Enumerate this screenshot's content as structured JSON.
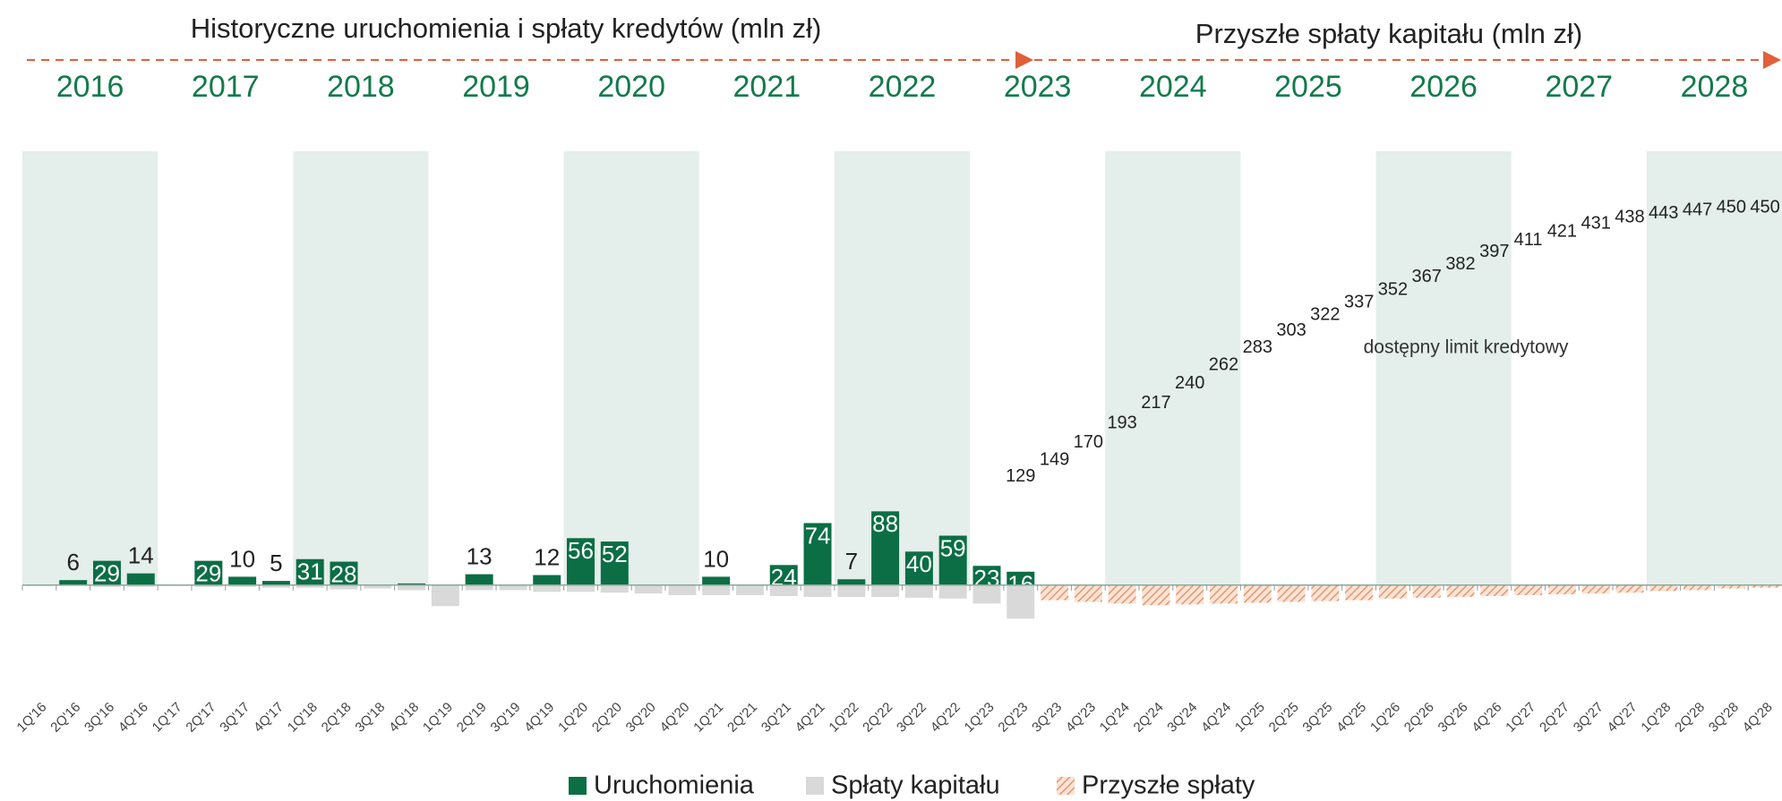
{
  "chart_data": {
    "type": "bar",
    "title": "Historyczne uruchomienia i spłaty kredytów (mln zł)",
    "subtitle": "Przyszłe spłaty kapitału (mln zł)",
    "years": [
      "2016",
      "2017",
      "2018",
      "2019",
      "2020",
      "2021",
      "2022",
      "2023",
      "2024",
      "2025",
      "2026",
      "2027",
      "2028"
    ],
    "categories": [
      "1Q'16",
      "2Q'16",
      "3Q'16",
      "4Q'16",
      "1Q'17",
      "2Q'17",
      "3Q'17",
      "4Q'17",
      "1Q'18",
      "2Q'18",
      "3Q'18",
      "4Q'18",
      "1Q'19",
      "2Q'19",
      "3Q'19",
      "4Q'19",
      "1Q'20",
      "2Q'20",
      "3Q'20",
      "4Q'20",
      "1Q'21",
      "2Q'21",
      "3Q'21",
      "4Q'21",
      "1Q'22",
      "2Q'22",
      "3Q'22",
      "4Q'22",
      "1Q'23",
      "2Q'23",
      "3Q'23",
      "4Q'23",
      "1Q'24",
      "2Q'24",
      "3Q'24",
      "4Q'24",
      "1Q'25",
      "2Q'25",
      "3Q'25",
      "4Q'25",
      "1Q'26",
      "2Q'26",
      "3Q'26",
      "4Q'26",
      "1Q'27",
      "2Q'27",
      "3Q'27",
      "4Q'27",
      "1Q'28",
      "2Q'28",
      "3Q'28",
      "4Q'28"
    ],
    "series": [
      {
        "name": "Uruchomienia",
        "color": "#0b6e45",
        "values": [
          null,
          6,
          29,
          14,
          null,
          29,
          10,
          5,
          31,
          28,
          null,
          2,
          null,
          13,
          null,
          12,
          56,
          52,
          null,
          null,
          10,
          null,
          24,
          74,
          7,
          88,
          40,
          59,
          23,
          16,
          null,
          null,
          null,
          null,
          null,
          null,
          null,
          null,
          null,
          null,
          null,
          null,
          null,
          null,
          null,
          null,
          null,
          null,
          null,
          null,
          null,
          null
        ],
        "value_labels": [
          null,
          "6",
          "29",
          "14",
          null,
          "29",
          "10",
          "5",
          "31",
          "28",
          null,
          null,
          null,
          "13",
          null,
          "12",
          "56",
          "52",
          null,
          null,
          "10",
          null,
          "24",
          "74",
          "7",
          "88",
          "40",
          "59",
          "23",
          "16",
          null,
          null,
          null,
          null,
          null,
          null,
          null,
          null,
          null,
          null,
          null,
          null,
          null,
          null,
          null,
          null,
          null,
          null,
          null,
          null,
          null,
          null
        ]
      },
      {
        "name": "Spłaty kapitału",
        "color": "#d9d9d9",
        "values": [
          -1,
          -1,
          -2,
          -2,
          -1,
          -2,
          -2,
          -3,
          -3,
          -5,
          -4,
          -6,
          -25,
          -6,
          -6,
          -8,
          -8,
          -9,
          -10,
          -12,
          -12,
          -12,
          -13,
          -14,
          -14,
          -14,
          -15,
          -16,
          -22,
          -40,
          null,
          null,
          null,
          null,
          null,
          null,
          null,
          null,
          null,
          null,
          null,
          null,
          null,
          null,
          null,
          null,
          null,
          null,
          null,
          null,
          null,
          null
        ]
      },
      {
        "name": "Przyszłe spłaty",
        "color": "#e8a07a",
        "values": [
          null,
          null,
          null,
          null,
          null,
          null,
          null,
          null,
          null,
          null,
          null,
          null,
          null,
          null,
          null,
          null,
          null,
          null,
          null,
          null,
          null,
          null,
          null,
          null,
          null,
          null,
          null,
          null,
          null,
          null,
          -18,
          -20,
          -22,
          -24,
          -23,
          -22,
          -21,
          -20,
          -19,
          -18,
          -16,
          -15,
          -14,
          -13,
          -12,
          -11,
          -10,
          -9,
          -7,
          -6,
          -4,
          -3
        ]
      }
    ],
    "limit": {
      "label": "dostępny limit kredytowy",
      "values": [
        null,
        null,
        null,
        null,
        null,
        null,
        null,
        null,
        null,
        null,
        null,
        null,
        null,
        null,
        null,
        null,
        null,
        null,
        null,
        null,
        null,
        null,
        null,
        null,
        null,
        null,
        null,
        null,
        null,
        129,
        149,
        170,
        193,
        217,
        240,
        262,
        283,
        303,
        322,
        337,
        352,
        367,
        382,
        397,
        411,
        421,
        431,
        438,
        443,
        447,
        450,
        450
      ]
    },
    "ylim": [
      -60,
      510
    ]
  }
}
